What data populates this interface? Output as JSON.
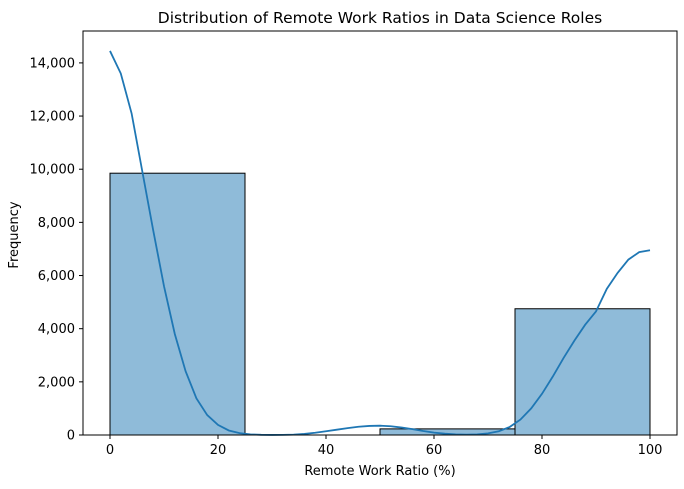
{
  "chart_data": {
    "type": "bar",
    "title": "Distribution of Remote Work Ratios in Data Science Roles",
    "xlabel": "Remote Work Ratio (%)",
    "ylabel": "Frequency",
    "xlim": [
      -5,
      105
    ],
    "ylim": [
      0,
      15200
    ],
    "x_ticks": [
      0,
      20,
      40,
      60,
      80,
      100
    ],
    "y_ticks": [
      0,
      2000,
      4000,
      6000,
      8000,
      10000,
      12000,
      14000
    ],
    "x_tick_labels": [
      "0",
      "20",
      "40",
      "60",
      "80",
      "100"
    ],
    "y_tick_labels": [
      "0",
      "2,000",
      "4,000",
      "6,000",
      "8,000",
      "10,000",
      "12,000",
      "14,000"
    ],
    "bins": [
      {
        "start": 0,
        "end": 25,
        "value": 9850
      },
      {
        "start": 25,
        "end": 50,
        "value": 0
      },
      {
        "start": 50,
        "end": 75,
        "value": 230
      },
      {
        "start": 75,
        "end": 100,
        "value": 4750
      }
    ],
    "kde": {
      "x": [
        0,
        2,
        4,
        6,
        8,
        10,
        12,
        14,
        16,
        18,
        20,
        22,
        24,
        26,
        28,
        30,
        32,
        34,
        36,
        38,
        40,
        42,
        44,
        46,
        48,
        50,
        52,
        54,
        56,
        58,
        60,
        62,
        64,
        66,
        68,
        70,
        72,
        74,
        76,
        78,
        80,
        82,
        84,
        86,
        88,
        90,
        92,
        94,
        96,
        98,
        100
      ],
      "y": [
        14450,
        13600,
        12100,
        9900,
        7700,
        5600,
        3800,
        2400,
        1380,
        750,
        380,
        170,
        70,
        25,
        8,
        3,
        5,
        15,
        40,
        85,
        140,
        200,
        260,
        310,
        340,
        350,
        330,
        280,
        220,
        150,
        90,
        50,
        25,
        15,
        25,
        60,
        140,
        300,
        580,
        1000,
        1550,
        2200,
        2900,
        3550,
        4150,
        4650,
        5500,
        6100,
        6600,
        6880,
        6950
      ]
    },
    "grid": false,
    "legend": "none"
  }
}
